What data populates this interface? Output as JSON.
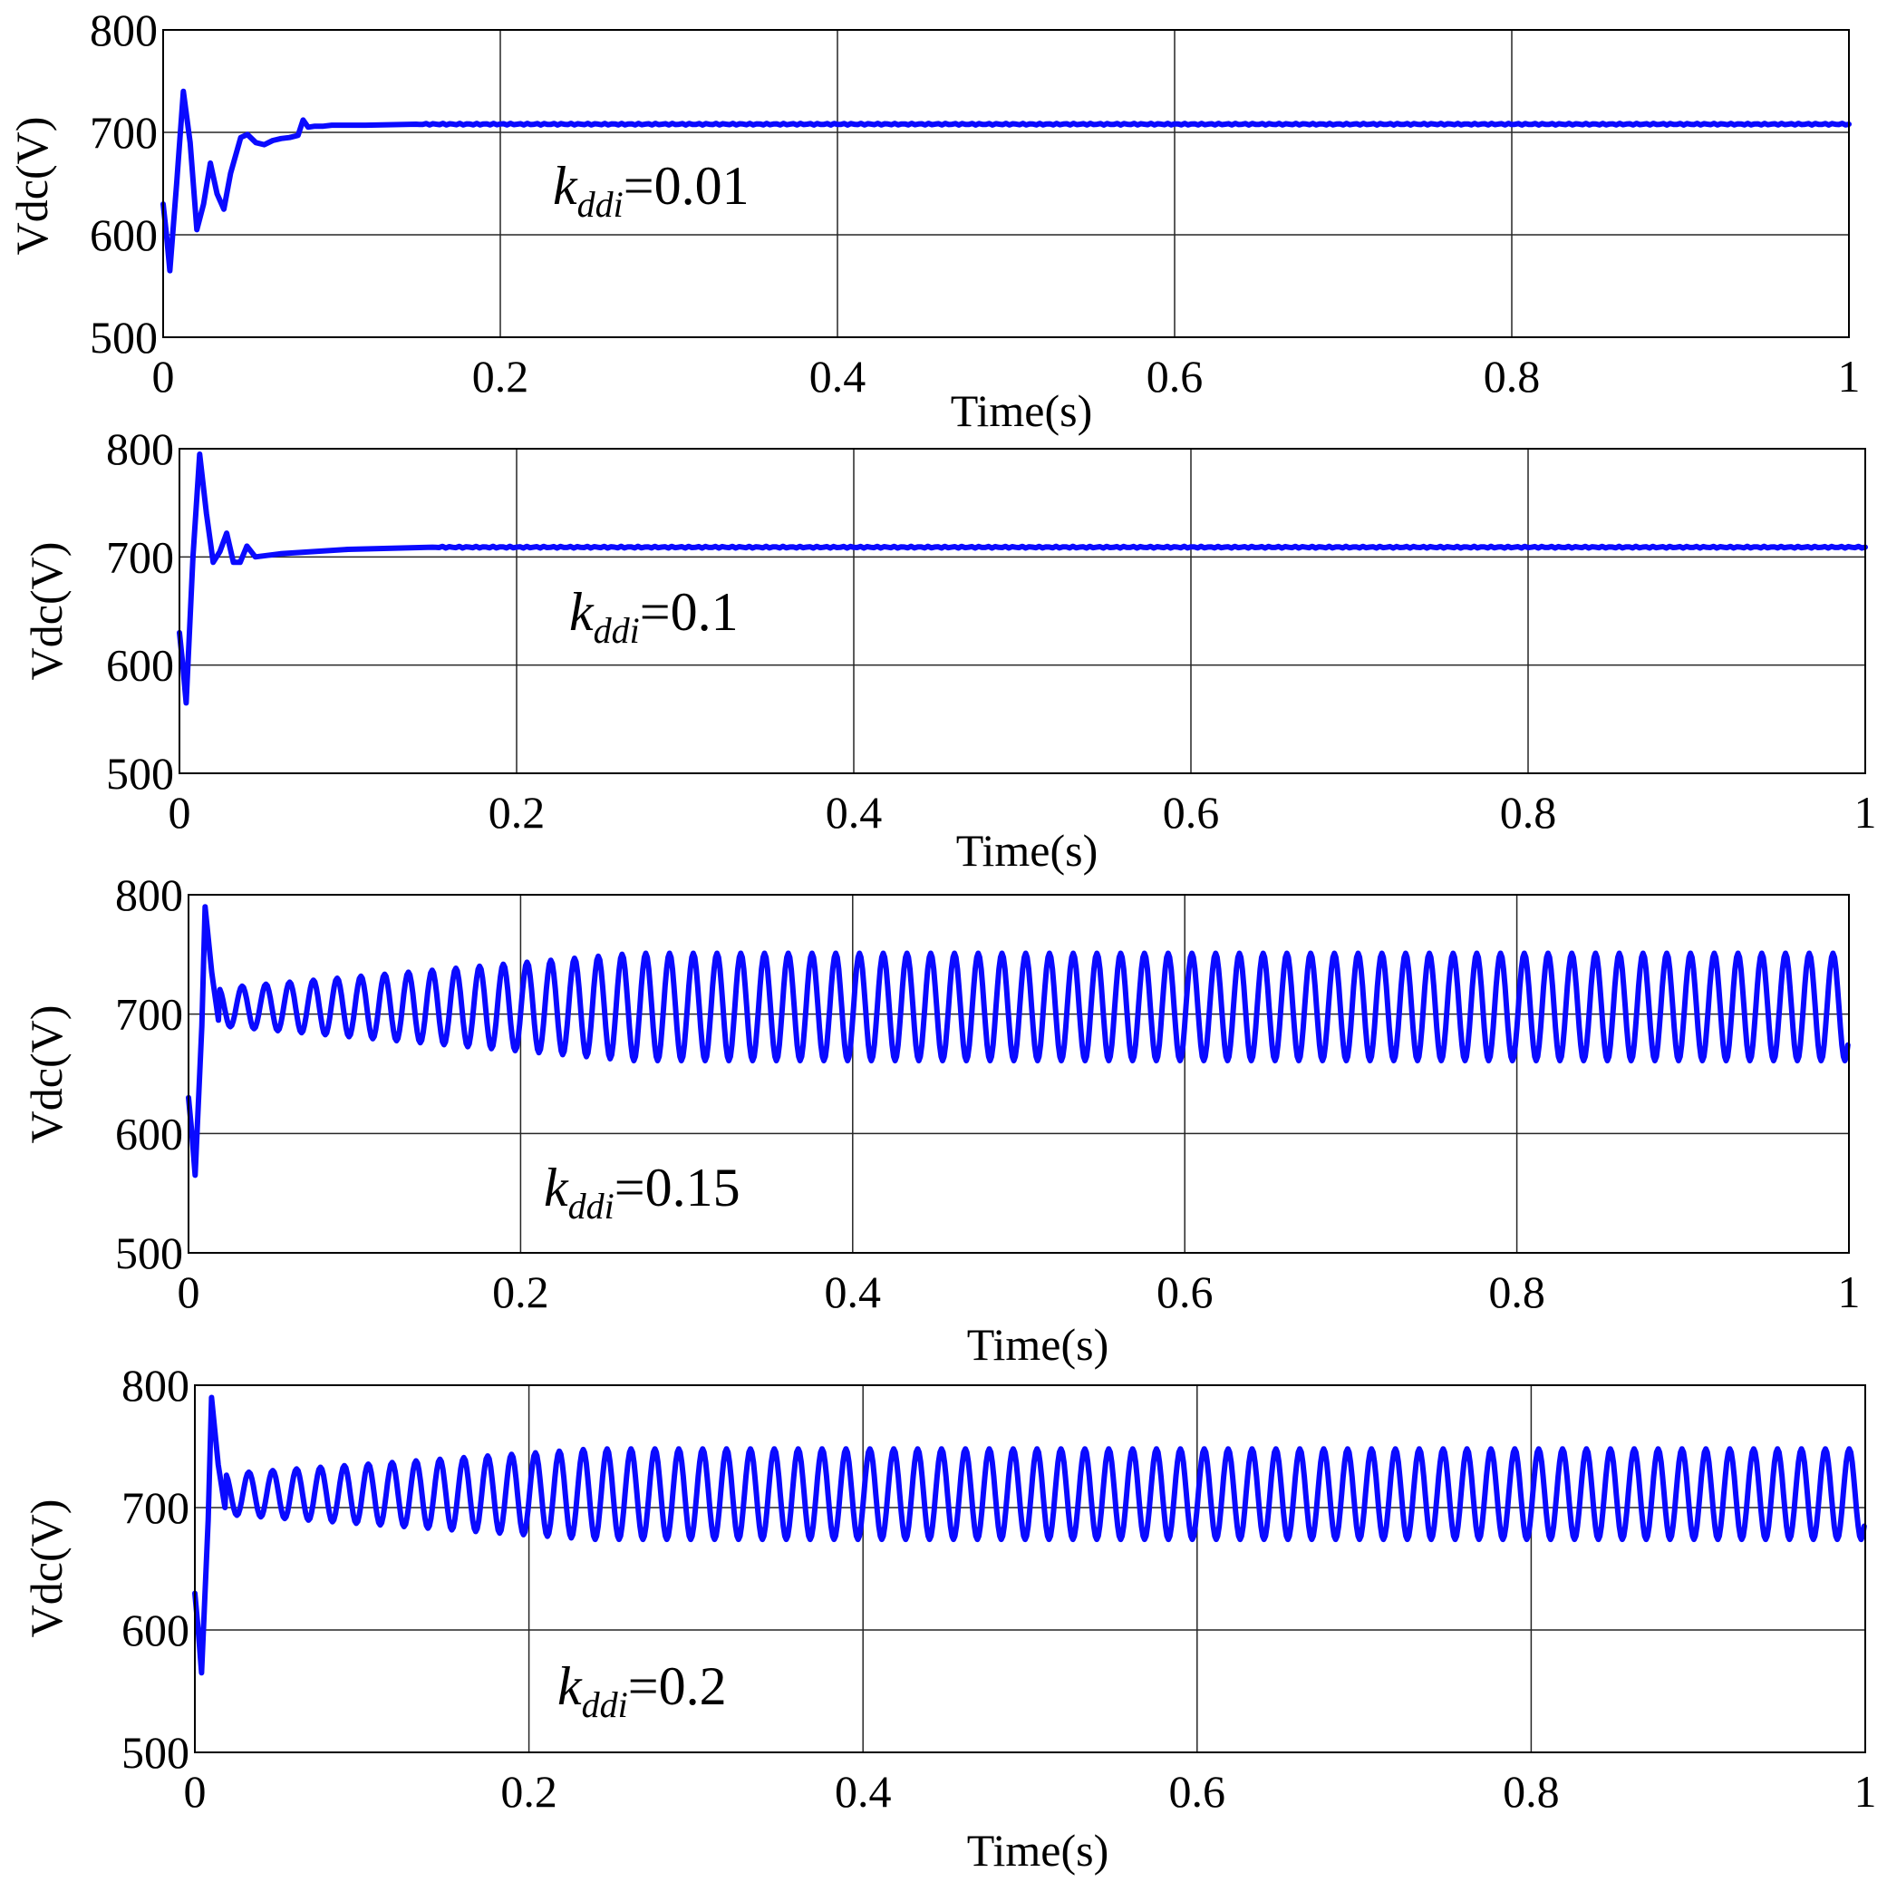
{
  "chart_data": [
    {
      "type": "line",
      "xlabel": "Time(s)",
      "ylabel": "Vdc(V)",
      "xlim": [
        0,
        1
      ],
      "ylim": [
        500,
        800
      ],
      "xticks": [
        "0",
        "0.2",
        "0.4",
        "0.6",
        "0.8",
        "1"
      ],
      "yticks": [
        "500",
        "600",
        "700",
        "800"
      ],
      "grid": true,
      "annotation": {
        "var": "k",
        "sub": "ddi",
        "value": "=0.01"
      },
      "series": [
        {
          "color": "#0a0aff",
          "steady_value": 708,
          "oscillation_amplitude": 0,
          "oscillation_period_s": 0,
          "x": [
            0,
            0.002,
            0.004,
            0.008,
            0.012,
            0.016,
            0.02,
            0.024,
            0.028,
            0.032,
            0.036,
            0.04,
            0.046,
            0.05,
            0.055,
            0.06,
            0.065,
            0.07,
            0.075,
            0.08,
            0.083,
            0.086,
            0.09,
            0.095,
            0.1,
            0.12,
            0.15,
            1.0
          ],
          "y": [
            630,
            600,
            565,
            650,
            740,
            690,
            605,
            630,
            670,
            640,
            625,
            660,
            695,
            698,
            690,
            688,
            692,
            694,
            695,
            697,
            712,
            705,
            706,
            706,
            707,
            707,
            708,
            708
          ]
        }
      ]
    },
    {
      "type": "line",
      "xlabel": "Time(s)",
      "ylabel": "Vdc(V)",
      "xlim": [
        0,
        1
      ],
      "ylim": [
        500,
        800
      ],
      "xticks": [
        "0",
        "0.2",
        "0.4",
        "0.6",
        "0.8",
        "1"
      ],
      "yticks": [
        "500",
        "600",
        "700",
        "800"
      ],
      "grid": true,
      "annotation": {
        "var": "k",
        "sub": "ddi",
        "value": "=0.1"
      },
      "series": [
        {
          "color": "#0a0aff",
          "steady_value": 709,
          "oscillation_amplitude": 0,
          "oscillation_period_s": 0,
          "x": [
            0,
            0.002,
            0.004,
            0.008,
            0.012,
            0.016,
            0.02,
            0.024,
            0.028,
            0.032,
            0.036,
            0.04,
            0.045,
            0.06,
            0.1,
            0.15,
            1.0
          ],
          "y": [
            630,
            600,
            565,
            700,
            795,
            740,
            695,
            705,
            722,
            695,
            695,
            710,
            700,
            703,
            707,
            709,
            709
          ]
        }
      ]
    },
    {
      "type": "line",
      "xlabel": "Time(s)",
      "ylabel": "Vdc(V)",
      "xlim": [
        0,
        1
      ],
      "ylim": [
        500,
        800
      ],
      "xticks": [
        "0",
        "0.2",
        "0.4",
        "0.6",
        "0.8",
        "1"
      ],
      "yticks": [
        "500",
        "600",
        "700",
        "800"
      ],
      "grid": true,
      "annotation": {
        "var": "k",
        "sub": "ddi",
        "value": "=0.15"
      },
      "series": [
        {
          "color": "#0a0aff",
          "steady_value": 706,
          "oscillation_amplitude": 45,
          "oscillation_period_s": 0.0143,
          "x": [
            0,
            0.002,
            0.004,
            0.008,
            0.01,
            0.014,
            0.018
          ],
          "y": [
            630,
            600,
            565,
            690,
            790,
            735,
            695
          ]
        }
      ]
    },
    {
      "type": "line",
      "xlabel": "Time(s)",
      "ylabel": "Vdc(V)",
      "xlim": [
        0,
        1
      ],
      "ylim": [
        500,
        800
      ],
      "xticks": [
        "0",
        "0.2",
        "0.4",
        "0.6",
        "0.8",
        "1"
      ],
      "yticks": [
        "500",
        "600",
        "700",
        "800"
      ],
      "grid": true,
      "annotation": {
        "var": "k",
        "sub": "ddi",
        "value": "=0.2"
      },
      "series": [
        {
          "color": "#0a0aff",
          "steady_value": 711,
          "oscillation_amplitude": 37,
          "oscillation_period_s": 0.0143,
          "x": [
            0,
            0.002,
            0.004,
            0.008,
            0.01,
            0.014,
            0.018
          ],
          "y": [
            630,
            600,
            565,
            690,
            790,
            735,
            700
          ]
        }
      ]
    }
  ]
}
